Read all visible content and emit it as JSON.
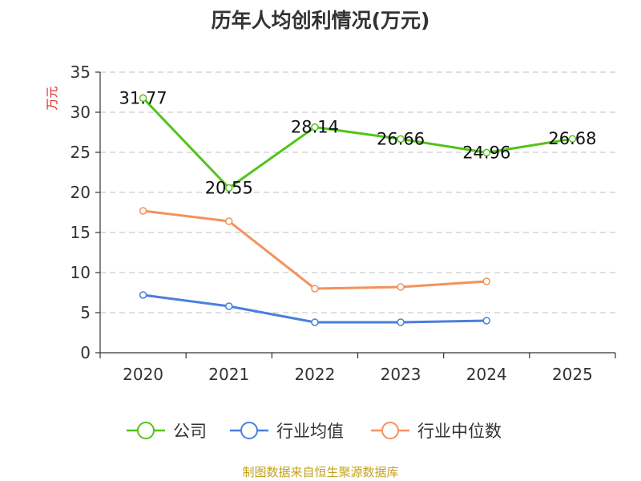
{
  "title": "历年人均创利情况(万元)",
  "source": "制图数据来自恒生聚源数据库",
  "chart_data": {
    "type": "line",
    "title": "历年人均创利情况(万元)",
    "xlabel": "",
    "ylabel": "万元",
    "categories": [
      "2020",
      "2021",
      "2022",
      "2023",
      "2024",
      "2025"
    ],
    "ylim": [
      0,
      35
    ],
    "yticks": [
      0,
      5,
      10,
      15,
      20,
      25,
      30,
      35
    ],
    "grid": true,
    "legend_position": "bottom",
    "series": [
      {
        "name": "公司",
        "color": "#52c41a",
        "values": [
          31.77,
          20.55,
          28.14,
          26.66,
          24.96,
          26.68
        ],
        "show_labels": true
      },
      {
        "name": "行业均值",
        "color": "#4a7fdc",
        "values": [
          7.2,
          5.8,
          3.8,
          3.8,
          4.0,
          null
        ],
        "show_labels": false
      },
      {
        "name": "行业中位数",
        "color": "#f4915c",
        "values": [
          17.7,
          16.4,
          8.0,
          8.2,
          8.9,
          null
        ],
        "show_labels": false
      }
    ]
  }
}
